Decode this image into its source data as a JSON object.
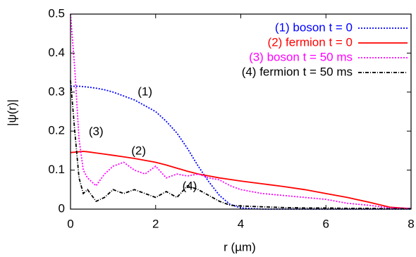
{
  "chart_data": {
    "type": "line",
    "xlabel": "r (µm)",
    "ylabel": "|ψ(r)|",
    "x": [
      0,
      0.1,
      0.2,
      0.3,
      0.4,
      0.6,
      0.8,
      1.0,
      1.25,
      1.5,
      1.75,
      2,
      2.25,
      2.5,
      2.75,
      3,
      3.25,
      3.5,
      3.75,
      4,
      4.5,
      5,
      5.5,
      6,
      6.5,
      7,
      7.5,
      8
    ],
    "series": [
      {
        "name": "(1) boson t = 0",
        "color": "#0000ff",
        "style": "dotted",
        "values": [
          0.315,
          0.315,
          0.315,
          0.314,
          0.313,
          0.31,
          0.306,
          0.3,
          0.29,
          0.28,
          0.265,
          0.25,
          0.225,
          0.195,
          0.155,
          0.11,
          0.07,
          0.035,
          0.012,
          0.003,
          0,
          0,
          0,
          0,
          0,
          0,
          0,
          0
        ]
      },
      {
        "name": "(2) fermion t = 0",
        "color": "#ff0000",
        "style": "solid",
        "values": [
          0.145,
          0.146,
          0.147,
          0.148,
          0.147,
          0.144,
          0.141,
          0.138,
          0.134,
          0.13,
          0.125,
          0.12,
          0.113,
          0.105,
          0.097,
          0.09,
          0.085,
          0.08,
          0.076,
          0.072,
          0.065,
          0.058,
          0.05,
          0.04,
          0.03,
          0.018,
          0.005,
          0.001
        ]
      },
      {
        "name": "(3) boson t = 50 ms",
        "color": "#ff00ff",
        "style": "dotted",
        "values": [
          0.5,
          0.36,
          0.18,
          0.1,
          0.08,
          0.06,
          0.09,
          0.11,
          0.12,
          0.1,
          0.09,
          0.11,
          0.08,
          0.09,
          0.085,
          0.09,
          0.08,
          0.075,
          0.06,
          0.05,
          0.04,
          0.035,
          0.03,
          0.025,
          0.015,
          0.01,
          0.003,
          0.002
        ]
      },
      {
        "name": "(4) fermion t = 50 ms",
        "color": "#000000",
        "style": "dashdot",
        "values": [
          0.33,
          0.2,
          0.08,
          0.04,
          0.05,
          0.02,
          0.03,
          0.05,
          0.04,
          0.05,
          0.04,
          0.03,
          0.045,
          0.03,
          0.06,
          0.05,
          0.035,
          0.02,
          0.01,
          0.008,
          0.006,
          0.004,
          0.003,
          0.003,
          0.002,
          0.002,
          0.001,
          0.001
        ]
      }
    ],
    "annotations": [
      {
        "text": "(1)",
        "x": 1.75,
        "y": 0.3
      },
      {
        "text": "(2)",
        "x": 1.6,
        "y": 0.148
      },
      {
        "text": "(3)",
        "x": 0.6,
        "y": 0.198
      },
      {
        "text": "(4)",
        "x": 2.8,
        "y": 0.058
      }
    ],
    "xlim": [
      0,
      8
    ],
    "xticks": [
      0,
      2,
      4,
      6,
      8
    ],
    "ylim": [
      0,
      0.5
    ],
    "yticks": [
      0,
      0.1,
      0.2,
      0.3,
      0.4,
      0.5
    ],
    "legend": "top-right"
  }
}
